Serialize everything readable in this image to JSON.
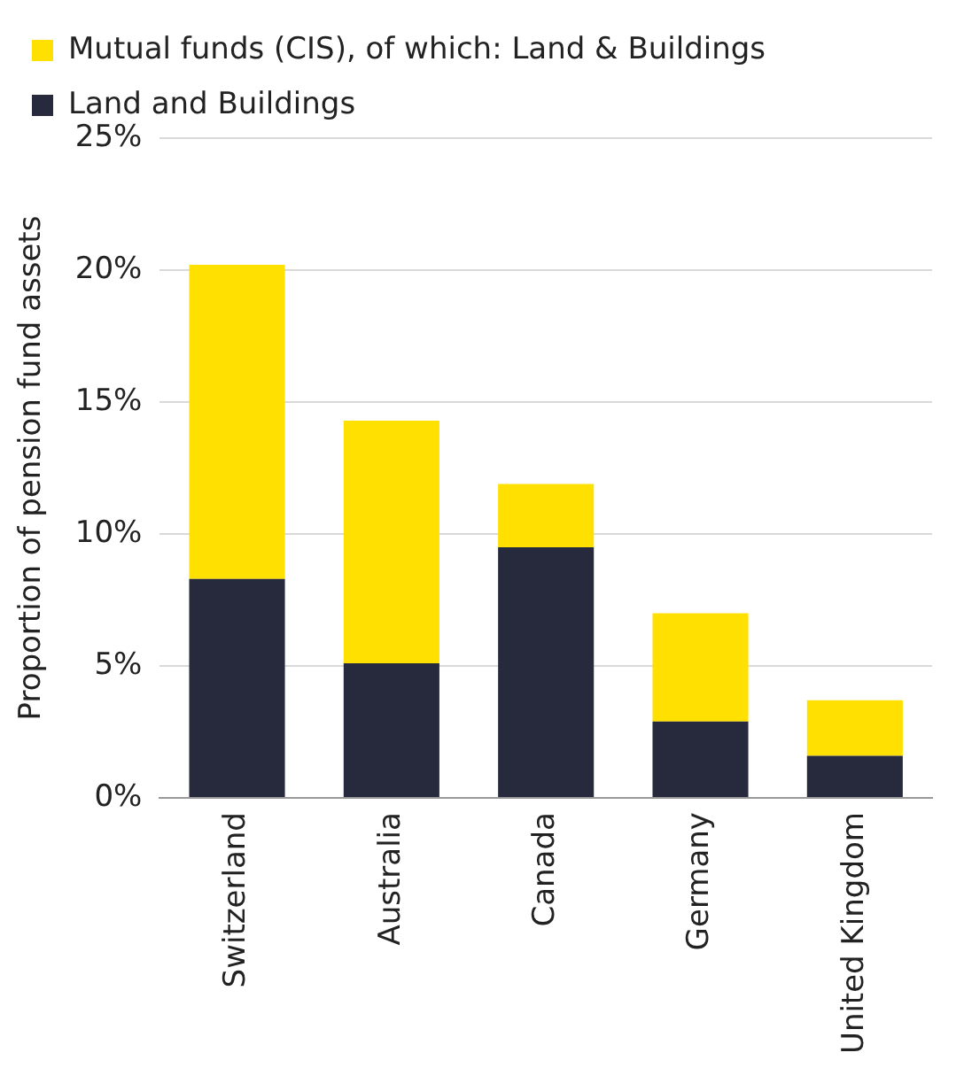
{
  "chart_data": {
    "type": "bar",
    "stacked": true,
    "ylabel": "Proportion of pension fund assets",
    "categories": [
      "Switzerland",
      "Australia",
      "Canada",
      "Germany",
      "United Kingdom"
    ],
    "series": [
      {
        "name": "Land and Buildings",
        "color": "#262a3c",
        "values": [
          8.3,
          5.1,
          9.5,
          2.9,
          1.6
        ]
      },
      {
        "name": "Mutual funds (CIS), of which: Land & Buildings",
        "color": "#ffe000",
        "values": [
          11.9,
          9.2,
          2.4,
          4.1,
          2.1
        ]
      }
    ],
    "ylim": [
      0,
      25
    ],
    "yticks": [
      {
        "value": 0,
        "label": "0%"
      },
      {
        "value": 5,
        "label": "5%"
      },
      {
        "value": 10,
        "label": "10%"
      },
      {
        "value": 15,
        "label": "15%"
      },
      {
        "value": 20,
        "label": "20%"
      },
      {
        "value": 25,
        "label": "25%"
      }
    ],
    "grid": "y",
    "legend": "top left"
  }
}
